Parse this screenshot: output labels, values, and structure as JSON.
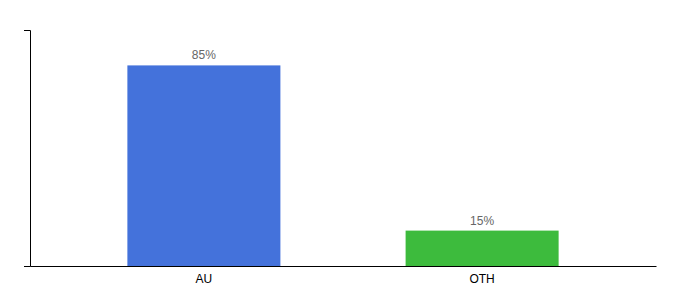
{
  "chart_data": {
    "type": "bar",
    "categories": [
      "AU",
      "OTH"
    ],
    "values": [
      85,
      15
    ],
    "value_labels": [
      "85%",
      "15%"
    ],
    "colors": [
      "#4472db",
      "#3dbb3d"
    ],
    "ylim": [
      0,
      100
    ],
    "data_labels": true,
    "tick_labels": "x"
  }
}
